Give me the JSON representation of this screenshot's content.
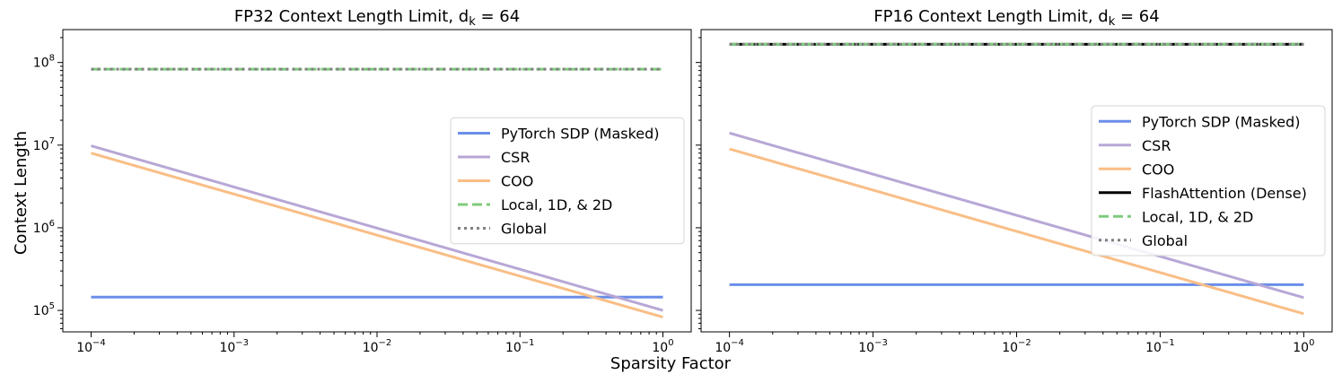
{
  "figure": {
    "xlabel": "Sparsity Factor",
    "ylabel": "Context Length"
  },
  "chart_data": [
    {
      "type": "line",
      "title": "FP32 Context Length Limit, d",
      "title_sub": "k",
      "title_tail": " = 64",
      "xscale": "log",
      "yscale": "log",
      "xlim": [
        0.0001,
        1
      ],
      "ylim": [
        55000,
        250000000
      ],
      "x_ticks": [
        {
          "v": 0.0001,
          "base": "10",
          "exp": "−4"
        },
        {
          "v": 0.001,
          "base": "10",
          "exp": "−3"
        },
        {
          "v": 0.01,
          "base": "10",
          "exp": "−2"
        },
        {
          "v": 0.1,
          "base": "10",
          "exp": "−1"
        },
        {
          "v": 1,
          "base": "10",
          "exp": "0"
        }
      ],
      "y_ticks": [
        {
          "v": 100000,
          "base": "10",
          "exp": "5"
        },
        {
          "v": 1000000,
          "base": "10",
          "exp": "6"
        },
        {
          "v": 10000000,
          "base": "10",
          "exp": "7"
        },
        {
          "v": 100000000,
          "base": "10",
          "exp": "8"
        }
      ],
      "legend_position": "center-right",
      "series": [
        {
          "name": "PyTorch SDP (Masked)",
          "color": "#6a8ee8",
          "style": "solid",
          "x": [
            0.0001,
            1
          ],
          "y": [
            145000,
            145000
          ]
        },
        {
          "name": "CSR",
          "color": "#b8a7d6",
          "style": "solid",
          "x": [
            0.0001,
            1
          ],
          "y": [
            9800000,
            100000
          ]
        },
        {
          "name": "COO",
          "color": "#f9be86",
          "style": "solid",
          "x": [
            0.0001,
            1
          ],
          "y": [
            8000000,
            83000
          ]
        },
        {
          "name": "Local, 1D, & 2D",
          "color": "#7fcb7e",
          "style": "dashed",
          "x": [
            0.0001,
            1
          ],
          "y": [
            83000000,
            83000000
          ]
        },
        {
          "name": "Global",
          "color": "#808080",
          "style": "dotted",
          "x": [
            0.0001,
            1
          ],
          "y": [
            83000000,
            83000000
          ]
        }
      ]
    },
    {
      "type": "line",
      "title": "FP16 Context Length Limit, d",
      "title_sub": "k",
      "title_tail": " = 64",
      "xscale": "log",
      "yscale": "log",
      "xlim": [
        0.0001,
        1
      ],
      "ylim": [
        55000,
        250000000
      ],
      "x_ticks": [
        {
          "v": 0.0001,
          "base": "10",
          "exp": "−4"
        },
        {
          "v": 0.001,
          "base": "10",
          "exp": "−3"
        },
        {
          "v": 0.01,
          "base": "10",
          "exp": "−2"
        },
        {
          "v": 0.1,
          "base": "10",
          "exp": "−1"
        },
        {
          "v": 1,
          "base": "10",
          "exp": "0"
        }
      ],
      "y_ticks": [],
      "legend_position": "center-right",
      "series": [
        {
          "name": "PyTorch SDP (Masked)",
          "color": "#6a8ee8",
          "style": "solid",
          "x": [
            0.0001,
            1
          ],
          "y": [
            205000,
            205000
          ]
        },
        {
          "name": "CSR",
          "color": "#b8a7d6",
          "style": "solid",
          "x": [
            0.0001,
            1
          ],
          "y": [
            14000000,
            143000
          ]
        },
        {
          "name": "COO",
          "color": "#f9be86",
          "style": "solid",
          "x": [
            0.0001,
            1
          ],
          "y": [
            9000000,
            91000
          ]
        },
        {
          "name": "FlashAttention (Dense)",
          "color": "#000000",
          "style": "solid",
          "x": [
            0.0001,
            1
          ],
          "y": [
            166000000,
            166000000
          ]
        },
        {
          "name": "Local, 1D, & 2D",
          "color": "#7fcb7e",
          "style": "dashed",
          "x": [
            0.0001,
            1
          ],
          "y": [
            166000000,
            166000000
          ]
        },
        {
          "name": "Global",
          "color": "#808080",
          "style": "dotted",
          "x": [
            0.0001,
            1
          ],
          "y": [
            166000000,
            166000000
          ]
        }
      ]
    }
  ]
}
